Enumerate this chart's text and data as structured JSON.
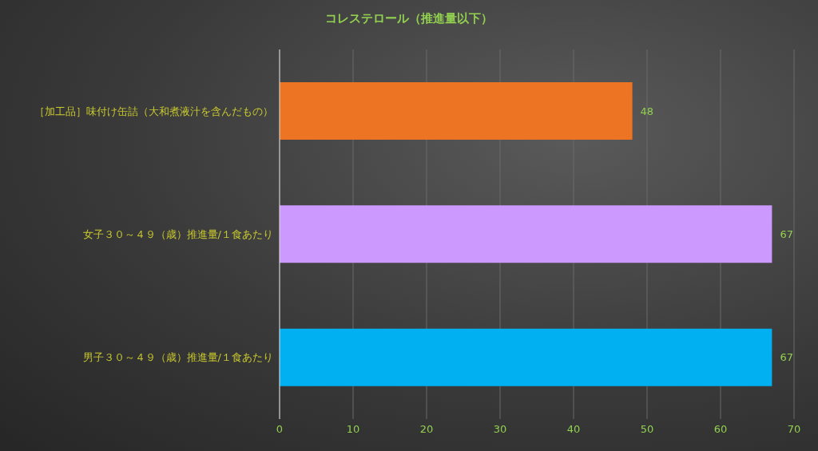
{
  "chart_data": {
    "type": "bar",
    "orientation": "horizontal",
    "title": "コレステロール（推進量以下）",
    "categories": [
      "［加工品］味付け缶詰（大和煮液汁を含んだもの）",
      "女子３０～４９（歳）推進量/１食あたり",
      "男子３０～４９（歳）推進量/１食あたり"
    ],
    "values": [
      48,
      67,
      67
    ],
    "colors": [
      "#ec7423",
      "#cc99ff",
      "#00b0f0"
    ],
    "xlim": [
      0,
      70
    ],
    "xticks": [
      0,
      10,
      20,
      30,
      40,
      50,
      60,
      70
    ],
    "grid": "x",
    "data_labels": true
  }
}
